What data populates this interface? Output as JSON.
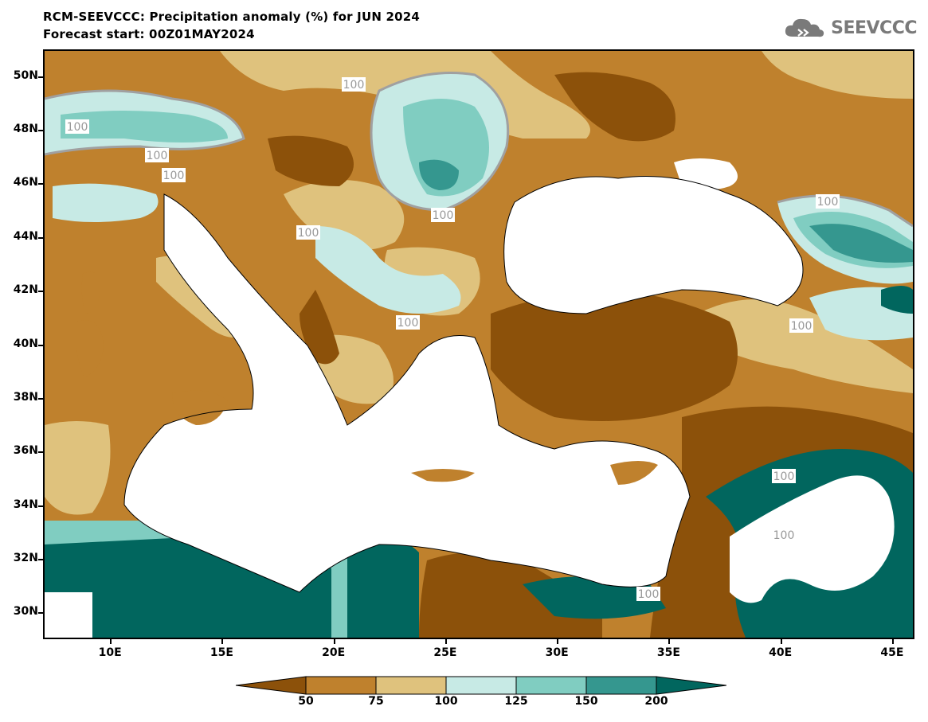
{
  "title_line1": "RCM-SEEVCCC: Precipitation anomaly (%) for JUN 2024",
  "title_line2": "Forecast start: 00Z01MAY2024",
  "logo": {
    "text": "SEEVCCC",
    "icon": "cloud-icon"
  },
  "map": {
    "projection": "lat-lon",
    "lon_range": [
      7,
      46
    ],
    "lat_range": [
      29,
      51
    ],
    "lat_ticks": [
      "50N",
      "48N",
      "46N",
      "44N",
      "42N",
      "40N",
      "38N",
      "36N",
      "34N",
      "32N",
      "30N"
    ],
    "lon_ticks": [
      "10E",
      "15E",
      "20E",
      "25E",
      "30E",
      "35E",
      "40E",
      "45E"
    ],
    "contour_value_label": "100",
    "contour_labels_count": 12,
    "land_mask_color": "#ffffff"
  },
  "colorbar": {
    "labels": [
      "50",
      "75",
      "100",
      "125",
      "150",
      "200"
    ],
    "colors": [
      "#8c510a",
      "#bf812d",
      "#dfc27d",
      "#c7eae5",
      "#80cdc1",
      "#35978f",
      "#01665e"
    ],
    "extend": "both"
  }
}
